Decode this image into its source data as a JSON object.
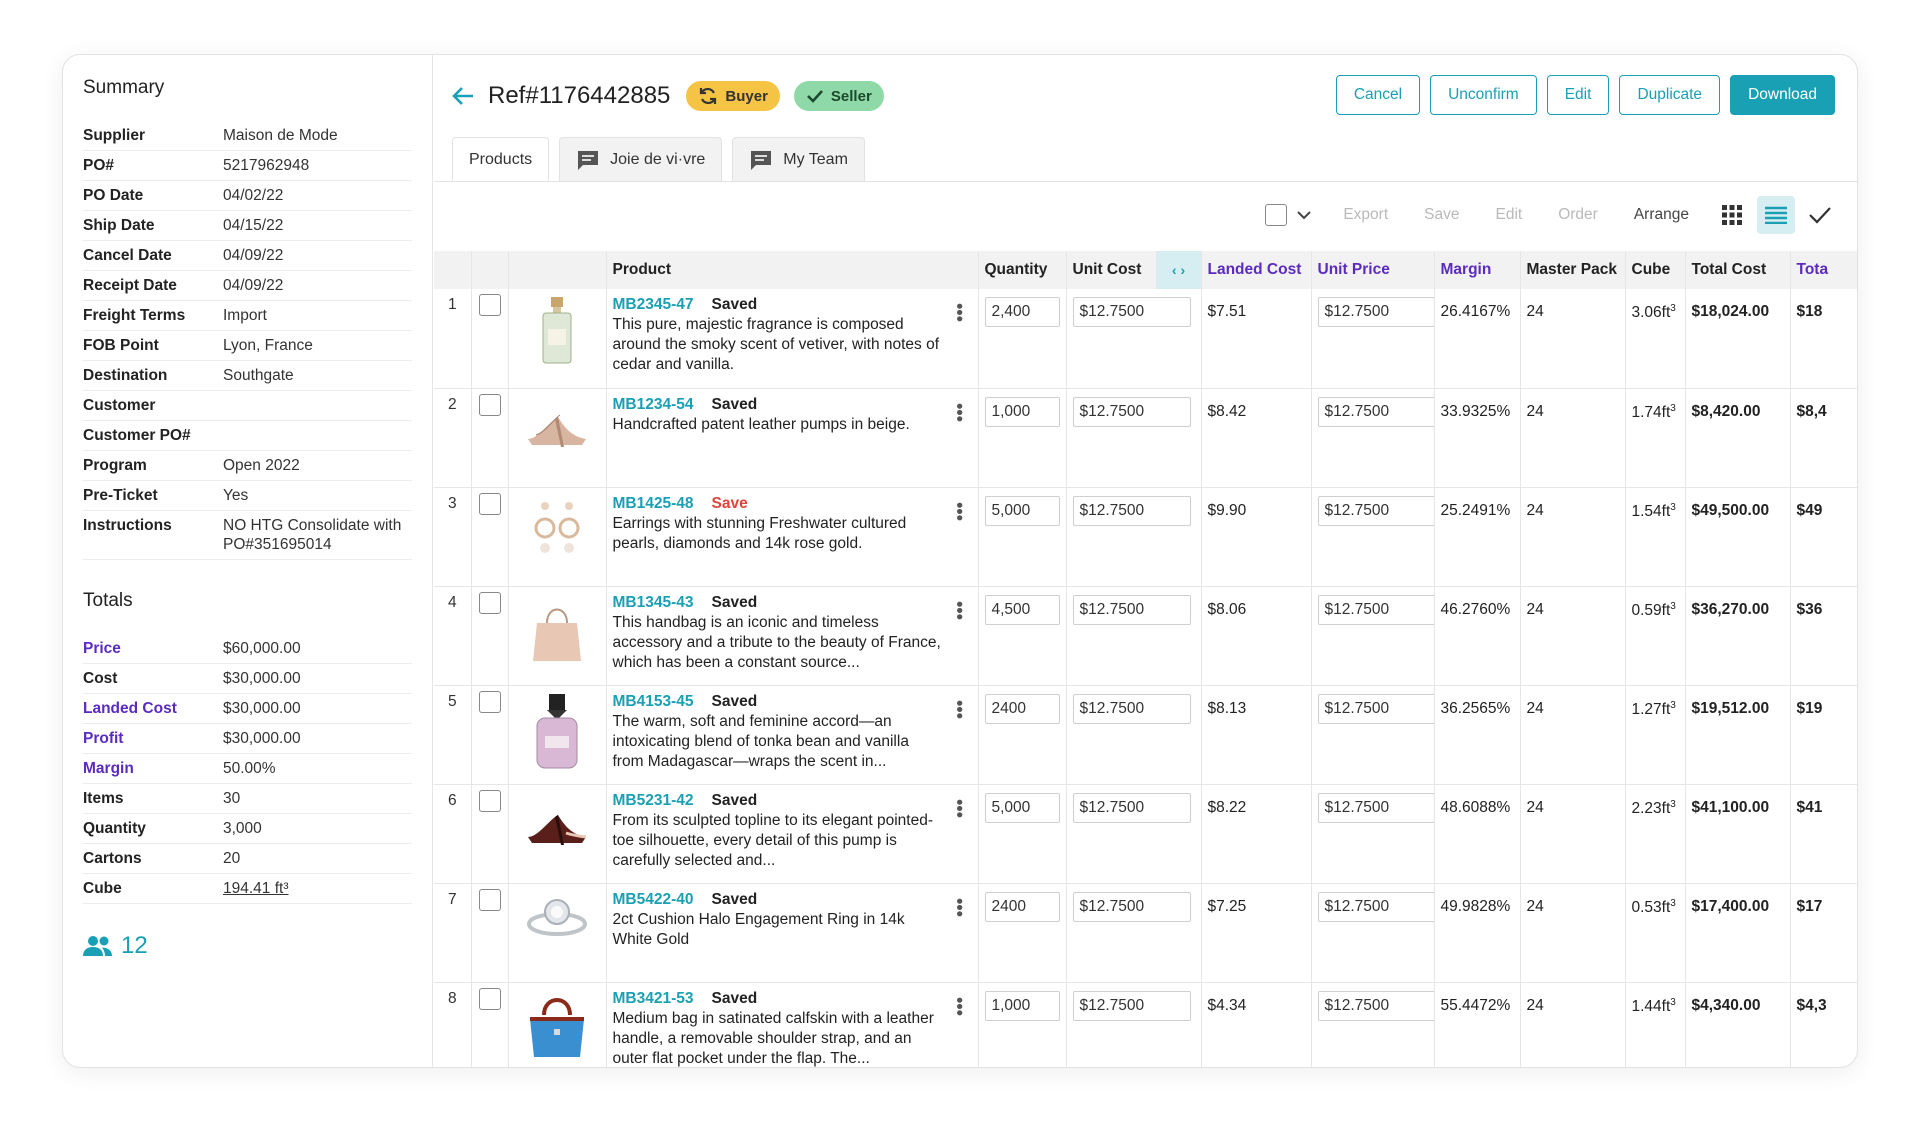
{
  "summary": {
    "title": "Summary",
    "rows": [
      {
        "k": "Supplier",
        "v": "Maison de Mode"
      },
      {
        "k": "PO#",
        "v": "5217962948"
      },
      {
        "k": "PO Date",
        "v": "04/02/22"
      },
      {
        "k": "Ship Date",
        "v": "04/15/22"
      },
      {
        "k": "Cancel Date",
        "v": "04/09/22"
      },
      {
        "k": "Receipt Date",
        "v": "04/09/22"
      },
      {
        "k": "Freight Terms",
        "v": "Import"
      },
      {
        "k": "FOB Point",
        "v": "Lyon, France"
      },
      {
        "k": "Destination",
        "v": "Southgate"
      },
      {
        "k": "Customer",
        "v": ""
      },
      {
        "k": "Customer PO#",
        "v": ""
      },
      {
        "k": "Program",
        "v": "Open 2022"
      },
      {
        "k": "Pre-Ticket",
        "v": "Yes"
      },
      {
        "k": "Instructions",
        "v": "NO HTG Consolidate with PO#351695014"
      }
    ]
  },
  "totals": {
    "title": "Totals",
    "rows": [
      {
        "k": "Price",
        "v": "$60,000.00"
      },
      {
        "k": "Cost",
        "v": "$30,000.00"
      },
      {
        "k": "Landed Cost",
        "v": "$30,000.00"
      },
      {
        "k": "Profit",
        "v": "$30,000.00"
      },
      {
        "k": "Margin",
        "v": "50.00%"
      },
      {
        "k": "Items",
        "v": "30"
      },
      {
        "k": "Quantity",
        "v": "3,000"
      },
      {
        "k": "Cartons",
        "v": "20"
      },
      {
        "k": "Cube",
        "v": "194.41 ft³"
      }
    ],
    "team_count": "12"
  },
  "header": {
    "ref": "Ref#1176442885",
    "buyer": "Buyer",
    "seller": "Seller",
    "actions": {
      "cancel": "Cancel",
      "unconfirm": "Unconfirm",
      "edit": "Edit",
      "duplicate": "Duplicate",
      "download": "Download"
    }
  },
  "tabs": {
    "products": "Products",
    "joie": "Joie de vi·vre",
    "team": "My Team"
  },
  "toolbar": {
    "export": "Export",
    "save": "Save",
    "edit": "Edit",
    "order": "Order",
    "arrange": "Arrange"
  },
  "columns": {
    "product": "Product",
    "quantity": "Quantity",
    "unit_cost": "Unit Cost",
    "landed_cost": "Landed Cost",
    "unit_price": "Unit Price",
    "margin": "Margin",
    "master_pack": "Master Pack",
    "cube": "Cube",
    "total_cost": "Total Cost",
    "total": "Tota"
  },
  "rows": [
    {
      "n": "1",
      "code": "MB2345-47",
      "status": "Saved",
      "desc": "This pure, majestic fragrance is composed around the smoky scent of vetiver, with notes of cedar and vanilla.",
      "qty": "2,400",
      "uc": "$12.7500",
      "lc": "$7.51",
      "up": "$12.7500",
      "margin": "26.4167%",
      "mp": "24",
      "cube": "3.06ft",
      "tc": "$18,024.00",
      "tot": "$18"
    },
    {
      "n": "2",
      "code": "MB1234-54",
      "status": "Saved",
      "desc": "Handcrafted patent leather pumps in beige.",
      "qty": "1,000",
      "uc": "$12.7500",
      "lc": "$8.42",
      "up": "$12.7500",
      "margin": "33.9325%",
      "mp": "24",
      "cube": "1.74ft",
      "tc": "$8,420.00",
      "tot": "$8,4"
    },
    {
      "n": "3",
      "code": "MB1425-48",
      "status": "Save",
      "desc": "Earrings with stunning Freshwater cultured pearls, diamonds and 14k rose gold.",
      "qty": "5,000",
      "uc": "$12.7500",
      "lc": "$9.90",
      "up": "$12.7500",
      "margin": "25.2491%",
      "mp": "24",
      "cube": "1.54ft",
      "tc": "$49,500.00",
      "tot": "$49"
    },
    {
      "n": "4",
      "code": "MB1345-43",
      "status": "Saved",
      "desc": "This handbag is an iconic and timeless accessory and a tribute to the beauty of France, which has been a constant source...",
      "qty": "4,500",
      "uc": "$12.7500",
      "lc": "$8.06",
      "up": "$12.7500",
      "margin": "46.2760%",
      "mp": "24",
      "cube": "0.59ft",
      "tc": "$36,270.00",
      "tot": "$36"
    },
    {
      "n": "5",
      "code": "MB4153-45",
      "status": "Saved",
      "desc": "The warm, soft and feminine accord—an intoxicating blend of tonka bean and vanilla from Madagascar—wraps the scent in...",
      "qty": "2400",
      "uc": "$12.7500",
      "lc": "$8.13",
      "up": "$12.7500",
      "margin": "36.2565%",
      "mp": "24",
      "cube": "1.27ft",
      "tc": "$19,512.00",
      "tot": "$19"
    },
    {
      "n": "6",
      "code": "MB5231-42",
      "status": "Saved",
      "desc": "From its sculpted topline to its elegant pointed-toe silhouette, every detail of this pump is carefully selected and...",
      "qty": "5,000",
      "uc": "$12.7500",
      "lc": "$8.22",
      "up": "$12.7500",
      "margin": "48.6088%",
      "mp": "24",
      "cube": "2.23ft",
      "tc": "$41,100.00",
      "tot": "$41"
    },
    {
      "n": "7",
      "code": "MB5422-40",
      "status": "Saved",
      "desc": "2ct Cushion Halo Engagement Ring in 14k White Gold",
      "qty": "2400",
      "uc": "$12.7500",
      "lc": "$7.25",
      "up": "$12.7500",
      "margin": "49.9828%",
      "mp": "24",
      "cube": "0.53ft",
      "tc": "$17,400.00",
      "tot": "$17"
    },
    {
      "n": "8",
      "code": "MB3421-53",
      "status": "Saved",
      "desc": "Medium bag in satinated calfskin with a leather handle, a removable shoulder strap, and an outer flat pocket under the flap. The...",
      "qty": "1,000",
      "uc": "$12.7500",
      "lc": "$4.34",
      "up": "$12.7500",
      "margin": "55.4472%",
      "mp": "24",
      "cube": "1.44ft",
      "tc": "$4,340.00",
      "tot": "$4,3"
    }
  ],
  "colors": {
    "accent": "#1aa0b4",
    "purple": "#5b2bbf",
    "buyer": "#f6c445",
    "seller": "#8fd9a8",
    "unsaved": "#e0433b"
  }
}
